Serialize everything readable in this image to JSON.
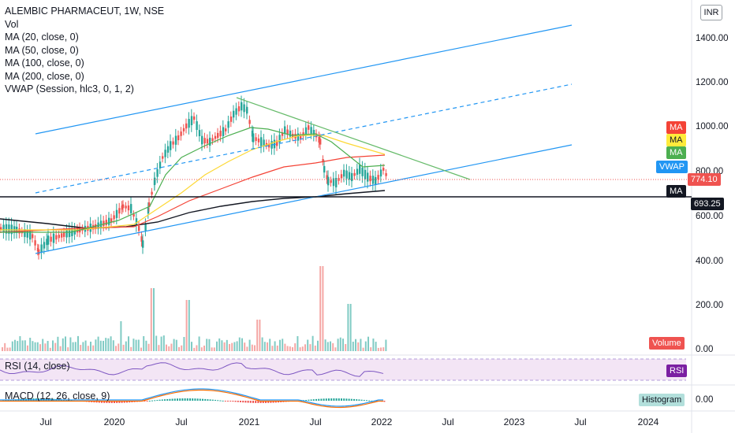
{
  "legend": {
    "title": "ALEMBIC PHARMACEUT, 1W, NSE",
    "lines": [
      "Vol",
      "MA (20, close, 0)",
      "MA (50, close, 0)",
      "MA (100, close, 0)",
      "MA (200, close, 0)",
      "VWAP (Session, hlc3, 0, 1, 2)"
    ]
  },
  "currency": "INR",
  "price_axis": [
    "1400.00",
    "1200.00",
    "1000.00",
    "800.00",
    "600.00",
    "400.00",
    "200.00",
    "0.00"
  ],
  "macd_axis": "0.00",
  "time_axis": [
    "Jul",
    "2020",
    "Jul",
    "2021",
    "Jul",
    "2022",
    "Jul",
    "2023",
    "Jul",
    "2024"
  ],
  "badges": {
    "ma_red": "MA",
    "ma_yellow": "MA",
    "ma_green": "MA",
    "vwap": "VWAP",
    "last_price": "774.10",
    "ma_black": "MA",
    "ma_black_value": "693.25",
    "volume": "Volume",
    "rsi": "RSI",
    "histogram": "Histogram"
  },
  "panes": {
    "rsi_label": "RSI (14, close)",
    "macd_label": "MACD (12, 26, close, 9)"
  },
  "colors": {
    "up": "#26a69a",
    "down": "#ef5350",
    "ma20": "#4caf50",
    "ma50": "#ffeb3b",
    "ma100": "#f44336",
    "ma200": "#131722",
    "trendline": "#2196f3",
    "rsi": "#7e57c2",
    "rsi_band": "#f3e5f5"
  }
}
